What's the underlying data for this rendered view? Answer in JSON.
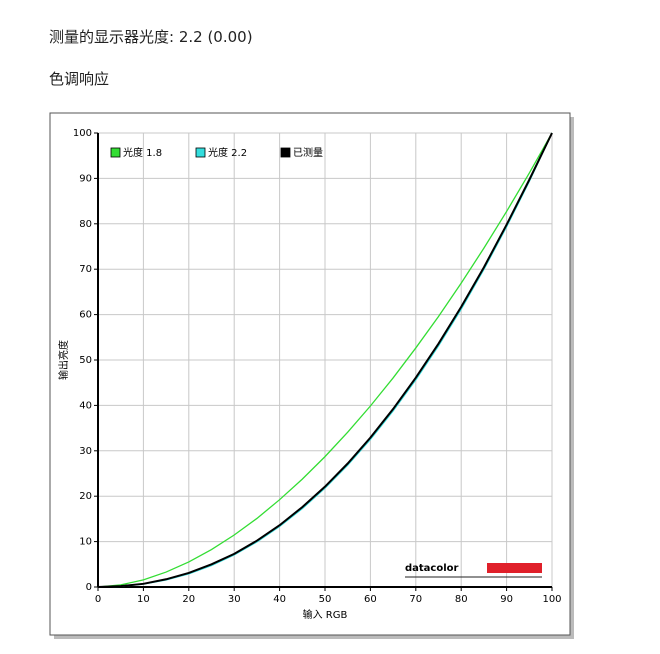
{
  "header": {
    "title": "测量的显示器光度:  2.2 (0.00)",
    "section": "色调响应"
  },
  "chart_data": {
    "type": "line",
    "xlabel": "输入 RGB",
    "ylabel": "输出亮度",
    "logo": "datacolor",
    "x": [
      0,
      5,
      10,
      15,
      20,
      25,
      30,
      35,
      40,
      45,
      50,
      55,
      60,
      65,
      70,
      75,
      80,
      85,
      90,
      95,
      100
    ],
    "series": [
      {
        "name": "光度 1.8",
        "color": "#33dd33",
        "values": [
          0,
          0.46,
          1.58,
          3.29,
          5.52,
          8.25,
          11.45,
          15.1,
          19.23,
          23.76,
          28.72,
          34.1,
          39.87,
          46.05,
          52.66,
          59.58,
          66.93,
          74.64,
          82.72,
          91.18,
          100
        ]
      },
      {
        "name": "光度 2.2",
        "color": "#33dddd",
        "values": [
          0,
          0.14,
          0.63,
          1.54,
          2.9,
          4.74,
          7.07,
          9.93,
          13.32,
          17.26,
          21.76,
          26.84,
          32.5,
          38.76,
          45.63,
          53.1,
          61.21,
          69.94,
          79.33,
          89.33,
          100
        ]
      },
      {
        "name": "已测量",
        "color": "#000000",
        "values": [
          0,
          0.2,
          0.7,
          1.7,
          3.1,
          5,
          7.3,
          10.2,
          13.6,
          17.6,
          22.1,
          27.2,
          32.9,
          39.2,
          46.1,
          53.6,
          61.7,
          70.4,
          79.8,
          89.7,
          100
        ]
      }
    ],
    "xlim": [
      0,
      100
    ],
    "xticks": [
      0,
      10,
      20,
      30,
      40,
      50,
      60,
      70,
      80,
      90,
      100
    ],
    "ylim": [
      0,
      100
    ],
    "yticks": [
      0,
      10,
      20,
      30,
      40,
      50,
      60,
      70,
      80,
      90,
      100
    ],
    "grid": true,
    "legend": "top-left"
  }
}
